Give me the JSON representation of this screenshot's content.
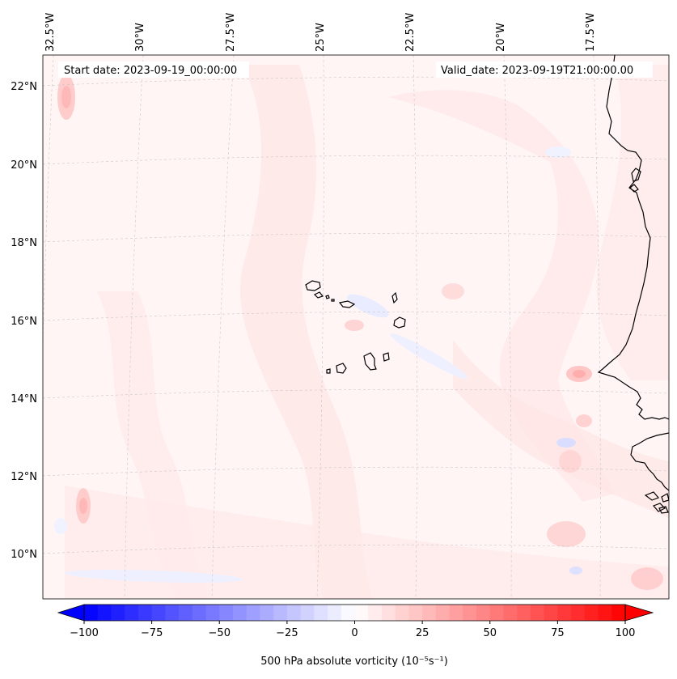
{
  "map": {
    "start_date_label": "Start date: 2023-09-19_00:00:00",
    "valid_date_label": "Valid_date: 2023-09-19T21:00:00.00",
    "lon_labels": [
      "32.5°W",
      "30°W",
      "27.5°W",
      "25°W",
      "22.5°W",
      "20°W",
      "17.5°W"
    ],
    "lat_labels": [
      "22°N",
      "20°N",
      "18°N",
      "16°N",
      "14°N",
      "12°N",
      "10°N"
    ],
    "field_colors": {
      "background": "#fff5f5",
      "weak_positive": "#ffe6e6",
      "moderate_positive": "#ffcdcd",
      "weak_negative": "#edf0ff"
    },
    "coastline_color": "#000000"
  },
  "colorbar": {
    "label": "500 hPa absolute vorticity (10⁻⁵s⁻¹)",
    "range": [
      -100,
      100
    ],
    "tick_values": [
      -100,
      -75,
      -50,
      -25,
      0,
      25,
      50,
      75,
      100
    ],
    "tick_labels": [
      "−100",
      "−75",
      "−50",
      "−25",
      "0",
      "25",
      "50",
      "75",
      "100"
    ],
    "extend": "both",
    "colormap": "bwr",
    "low_color": "#0000ff",
    "mid_color": "#ffffff",
    "high_color": "#ff0000"
  }
}
